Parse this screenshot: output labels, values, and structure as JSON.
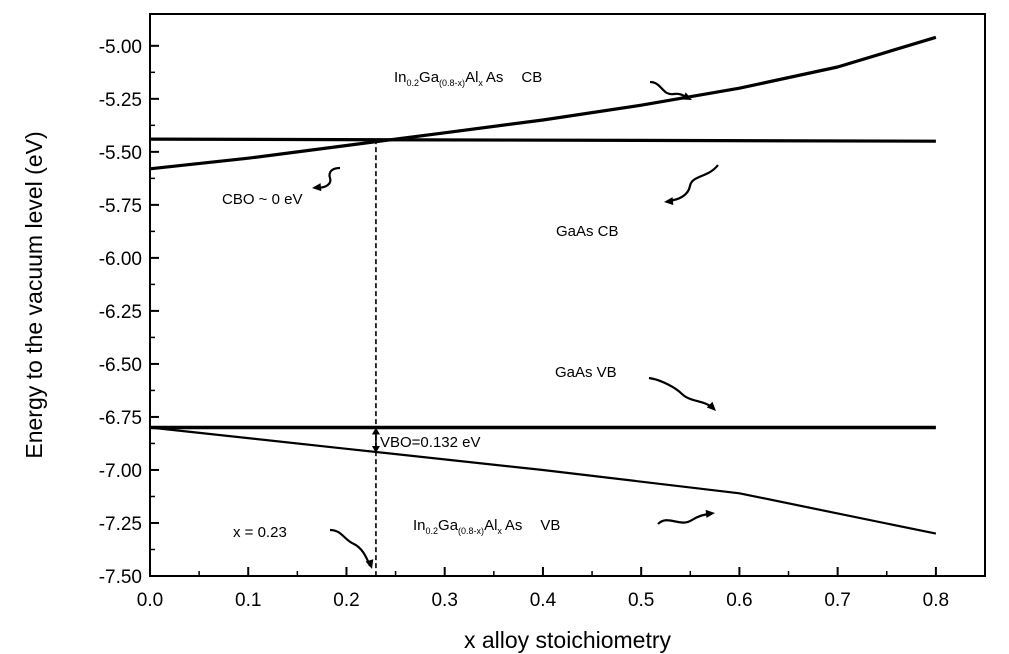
{
  "chart_data": {
    "type": "line",
    "title": "",
    "xlabel": "x alloy stoichiometry",
    "ylabel": "Energy to the vacuum level (eV)",
    "xlim": [
      0.0,
      0.85
    ],
    "ylim": [
      -7.5,
      -4.85
    ],
    "x_ticks": [
      "0.0",
      "0.1",
      "0.2",
      "0.3",
      "0.4",
      "0.5",
      "0.6",
      "0.7",
      "0.8"
    ],
    "y_ticks": [
      "-5.00",
      "-5.25",
      "-5.50",
      "-5.75",
      "-6.00",
      "-6.25",
      "-6.50",
      "-6.75",
      "-7.00",
      "-7.25",
      "-7.50"
    ],
    "series": [
      {
        "x": [
          0.0,
          0.1,
          0.2,
          0.3,
          0.4,
          0.5,
          0.6,
          0.7,
          0.8
        ],
        "y": [
          -5.58,
          -5.53,
          -5.47,
          -5.41,
          -5.35,
          -5.28,
          -5.2,
          -5.1,
          -4.96
        ]
      },
      {
        "x": [
          0.0,
          0.8
        ],
        "y": [
          -5.44,
          -5.45
        ]
      },
      {
        "x": [
          0.0,
          0.8
        ],
        "y": [
          -6.8,
          -6.8
        ]
      },
      {
        "x": [
          0.0,
          0.2,
          0.4,
          0.6,
          0.8
        ],
        "y": [
          -6.8,
          -6.9,
          -7.0,
          -7.11,
          -7.3
        ]
      }
    ],
    "annotations": {
      "ingaalas_cb": {
        "p1": "In",
        "s1": "0.2",
        "p2": "Ga",
        "s2": "(0.8-x)",
        "p3": "Al",
        "s3": "x",
        "p4": "As",
        "tag": "CB"
      },
      "gaas_cb": "GaAs CB",
      "gaas_vb": "GaAs VB",
      "ingaalas_vb": {
        "p1": "In",
        "s1": "0.2",
        "p2": "Ga",
        "s2": "(0.8-x)",
        "p3": "Al",
        "s3": "x",
        "p4": "As",
        "tag": "VB"
      },
      "cbo": "CBO ~ 0 eV",
      "vbo": "VBO=0.132 eV",
      "x_marker": "x = 0.23"
    },
    "marker_x": 0.23,
    "grid": false,
    "legend": "none"
  }
}
